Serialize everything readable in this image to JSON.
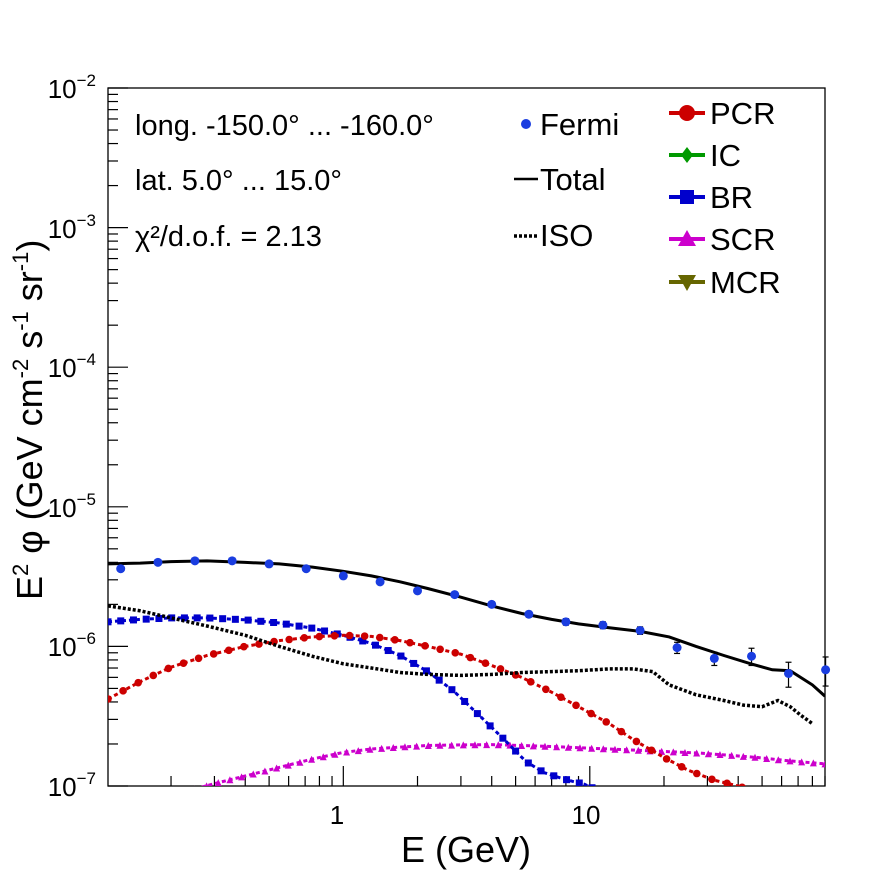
{
  "chart_data": {
    "type": "line",
    "x_scale": "log",
    "y_scale": "log",
    "xlim": [
      0.111,
      90
    ],
    "ylim": [
      1e-07,
      0.01
    ],
    "xlabel": "E (GeV)",
    "ylabel": "E2 φ (GeV cm-2 s-1 sr-1)",
    "x_tick_labels": [
      "1",
      "10"
    ],
    "y_tick_labels": [
      {
        "base": "10",
        "exp": "−7"
      },
      {
        "base": "10",
        "exp": "−6"
      },
      {
        "base": "10",
        "exp": "−5"
      },
      {
        "base": "10",
        "exp": "−4"
      },
      {
        "base": "10",
        "exp": "−3"
      },
      {
        "base": "10",
        "exp": "−2"
      }
    ],
    "annotations": {
      "longitude": "long. -150.0° ... -160.0°",
      "latitude": "lat. 5.0° ... 15.0°",
      "chi2": "χ²/d.o.f. = 2.13"
    },
    "legend": [
      {
        "name": "Fermi",
        "style": "points"
      },
      {
        "name": "Total",
        "style": "solid"
      },
      {
        "name": "ISO",
        "style": "dotted"
      },
      {
        "name": "PCR",
        "marker": "circle"
      },
      {
        "name": "IC",
        "marker": "diamond"
      },
      {
        "name": "BR",
        "marker": "square"
      },
      {
        "name": "SCR",
        "marker": "triangle-up"
      },
      {
        "name": "MCR",
        "marker": "triangle-down"
      }
    ],
    "colors": {
      "PCR": "#cc0000",
      "IC": "#009900",
      "BR": "#0000cc",
      "SCR": "#cc00cc",
      "MCR": "#666600",
      "Fermi": "#1a3de0",
      "Total": "#000000",
      "ISO": "#000000"
    },
    "series": [
      {
        "name": "Fermi",
        "x": [
          0.125,
          0.177,
          0.25,
          0.354,
          0.5,
          0.707,
          1.0,
          1.41,
          2.0,
          2.83,
          4.0,
          5.66,
          8.0,
          11.3,
          16.0,
          22.6,
          32.0,
          45.3,
          64.0,
          90.5
        ],
        "y": [
          3.6e-06,
          4e-06,
          4.1e-06,
          4.1e-06,
          3.9e-06,
          3.6e-06,
          3.2e-06,
          2.9e-06,
          2.5e-06,
          2.35e-06,
          2e-06,
          1.7e-06,
          1.5e-06,
          1.42e-06,
          1.3e-06,
          9.8e-07,
          8.2e-07,
          8.5e-07,
          6.4e-07,
          6.8e-07
        ],
        "yerr": [
          1.5e-07,
          1.5e-07,
          1.5e-07,
          1.5e-07,
          1.5e-07,
          1.3e-07,
          1.2e-07,
          1.1e-07,
          1e-07,
          1e-07,
          9e-08,
          8e-08,
          8e-08,
          8e-08,
          8e-08,
          9e-08,
          9e-08,
          1.2e-07,
          1.3e-07,
          1.6e-07
        ]
      },
      {
        "name": "Total",
        "x": [
          0.111,
          0.15,
          0.2,
          0.28,
          0.4,
          0.55,
          0.75,
          1.0,
          1.3,
          1.7,
          2.2,
          3.0,
          4.0,
          5.3,
          7.0,
          9.0,
          12,
          16,
          21,
          27,
          35,
          45,
          55,
          65,
          80,
          90
        ],
        "y": [
          3.9e-06,
          3.95e-06,
          4.05e-06,
          4.1e-06,
          4e-06,
          3.9e-06,
          3.7e-06,
          3.45e-06,
          3.2e-06,
          2.9e-06,
          2.6e-06,
          2.25e-06,
          1.95e-06,
          1.72e-06,
          1.56e-06,
          1.45e-06,
          1.36e-06,
          1.28e-06,
          1.17e-06,
          1e-06,
          8.6e-07,
          7.5e-07,
          6.8e-07,
          6.7e-07,
          5.3e-07,
          4.4e-07
        ]
      },
      {
        "name": "ISO",
        "x": [
          0.111,
          0.15,
          0.2,
          0.28,
          0.4,
          0.55,
          0.75,
          1.0,
          1.3,
          1.7,
          2.2,
          3.0,
          4.0,
          5.3,
          7.0,
          9.0,
          12,
          15,
          18,
          21,
          27,
          35,
          42,
          50,
          58,
          65,
          72,
          80
        ],
        "y": [
          1.95e-06,
          1.8e-06,
          1.6e-06,
          1.4e-06,
          1.2e-06,
          1e-06,
          8.5e-07,
          7.5e-07,
          7e-07,
          6.5e-07,
          6.3e-07,
          6.2e-07,
          6.3e-07,
          6.5e-07,
          6.6e-07,
          6.7e-07,
          6.9e-07,
          6.9e-07,
          6.6e-07,
          5.3e-07,
          4.5e-07,
          4.1e-07,
          3.8e-07,
          3.7e-07,
          4.1e-07,
          3.7e-07,
          3.2e-07,
          2.8e-07
        ]
      },
      {
        "name": "PCR",
        "x": [
          0.111,
          0.15,
          0.2,
          0.28,
          0.4,
          0.55,
          0.75,
          1.0,
          1.3,
          1.7,
          2.2,
          3.0,
          4.0,
          5.3,
          7.0,
          9.0,
          12,
          15,
          20,
          25,
          32,
          40,
          48,
          55
        ],
        "y": [
          4.2e-07,
          5.6e-07,
          7.1e-07,
          8.6e-07,
          1e-06,
          1.1e-06,
          1.17e-06,
          1.2e-06,
          1.18e-06,
          1.1e-06,
          1e-06,
          8.8e-07,
          7.3e-07,
          6e-07,
          4.7e-07,
          3.7e-07,
          2.8e-07,
          2.15e-07,
          1.6e-07,
          1.3e-07,
          1.1e-07,
          1e-07,
          9e-08,
          8e-08
        ]
      },
      {
        "name": "BR",
        "x": [
          0.111,
          0.15,
          0.2,
          0.28,
          0.4,
          0.55,
          0.75,
          1.0,
          1.3,
          1.7,
          2.2,
          2.8,
          3.5,
          4.5,
          5.5,
          6.5,
          7.5,
          8.5,
          9.5,
          10.5,
          11.5
        ],
        "y": [
          1.5e-06,
          1.56e-06,
          1.6e-06,
          1.6e-06,
          1.55e-06,
          1.47e-06,
          1.35e-06,
          1.2e-06,
          1.05e-06,
          8.6e-07,
          6.6e-07,
          4.8e-07,
          3.3e-07,
          2.15e-07,
          1.5e-07,
          1.25e-07,
          1.15e-07,
          1.08e-07,
          1.03e-07,
          9.5e-08,
          9e-08
        ]
      },
      {
        "name": "SCR",
        "x": [
          0.25,
          0.3,
          0.4,
          0.55,
          0.75,
          1.0,
          1.3,
          1.7,
          2.2,
          3.0,
          4.0,
          5.3,
          7.0,
          9.0,
          12,
          16,
          21,
          28,
          37,
          48,
          63,
          90
        ],
        "y": [
          9.5e-08,
          1.04e-07,
          1.18e-07,
          1.36e-07,
          1.56e-07,
          1.74e-07,
          1.84e-07,
          1.9e-07,
          1.95e-07,
          1.97e-07,
          1.98e-07,
          1.95e-07,
          1.92e-07,
          1.88e-07,
          1.84e-07,
          1.8e-07,
          1.76e-07,
          1.72e-07,
          1.66e-07,
          1.6e-07,
          1.52e-07,
          1.44e-07
        ]
      },
      {
        "name": "IC",
        "x": [],
        "y": []
      },
      {
        "name": "MCR",
        "x": [],
        "y": []
      }
    ]
  }
}
